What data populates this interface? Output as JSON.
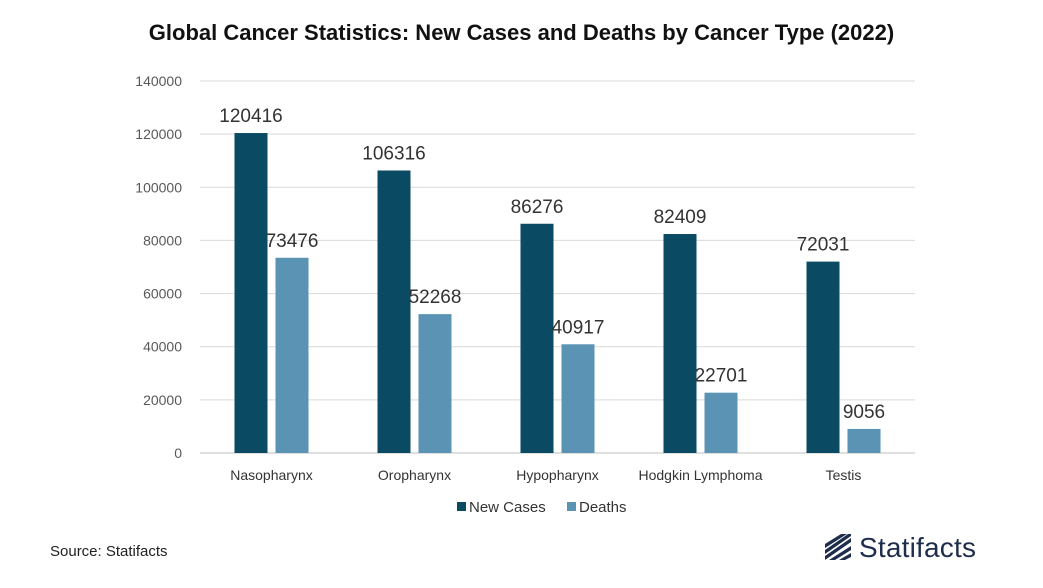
{
  "chart_data": {
    "type": "bar",
    "title": "Global Cancer Statistics: New Cases and Deaths by Cancer Type (2022)",
    "categories": [
      "Nasopharynx",
      "Oropharynx",
      "Hypopharynx",
      "Hodgkin Lymphoma",
      "Testis"
    ],
    "series": [
      {
        "name": "New Cases",
        "values": [
          120416,
          106316,
          86276,
          82409,
          72031
        ],
        "color": "#0b4a63"
      },
      {
        "name": "Deaths",
        "values": [
          73476,
          52268,
          40917,
          22701,
          9056
        ],
        "color": "#5a93b3"
      }
    ],
    "yticks": [
      0,
      20000,
      40000,
      60000,
      80000,
      100000,
      120000,
      140000
    ],
    "ylim": [
      0,
      140000
    ],
    "xlabel": "",
    "ylabel": "",
    "grid": true,
    "legend": "bottom"
  },
  "footer": {
    "source": "Source: Statifacts",
    "brand": "Statifacts"
  }
}
